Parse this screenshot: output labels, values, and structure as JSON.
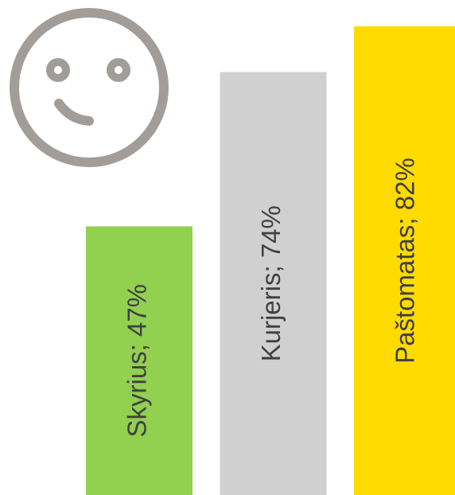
{
  "chart_data": {
    "type": "bar",
    "categories": [
      "Skyrius",
      "Kurjeris",
      "Paštomatas"
    ],
    "values": [
      47,
      74,
      82
    ],
    "value_labels": [
      "Skyrius; 47%",
      "Kurjeris; 74%",
      "Paštomatas; 82%"
    ],
    "colors": [
      "#92d050",
      "#d0d0d0",
      "#ffdb00"
    ],
    "ylim": [
      0,
      86.6
    ]
  }
}
